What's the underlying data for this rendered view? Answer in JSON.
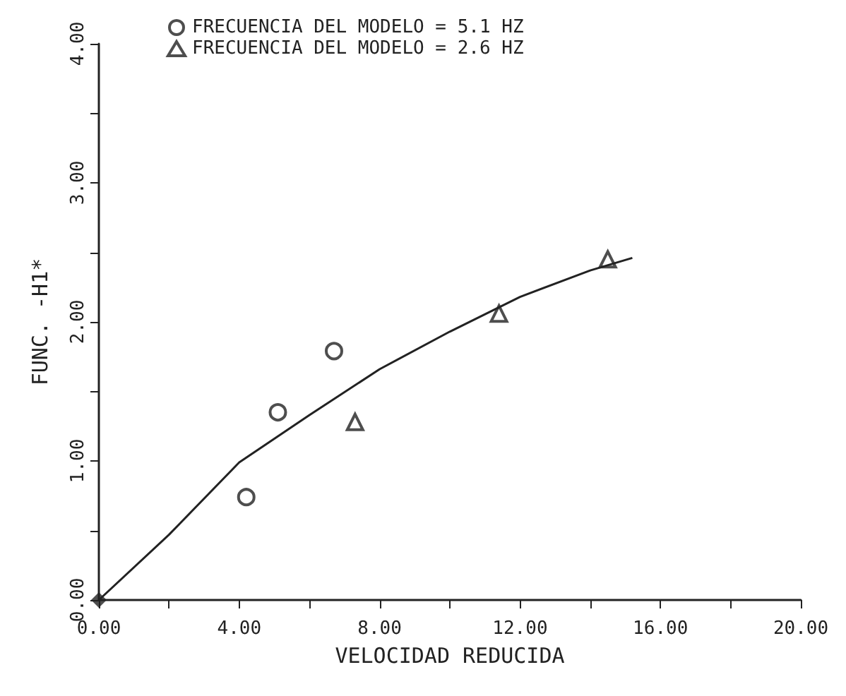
{
  "chart_data": {
    "type": "scatter",
    "xlabel": "VELOCIDAD REDUCIDA",
    "ylabel": "FUNC. -H1*",
    "xlim": [
      0,
      20
    ],
    "ylim": [
      0,
      4
    ],
    "xticks": [
      {
        "value": 0,
        "label": "0.00"
      },
      {
        "value": 2,
        "label": null
      },
      {
        "value": 4,
        "label": "4.00"
      },
      {
        "value": 6,
        "label": null
      },
      {
        "value": 8,
        "label": "8.00"
      },
      {
        "value": 10,
        "label": null
      },
      {
        "value": 12,
        "label": "12.00"
      },
      {
        "value": 14,
        "label": null
      },
      {
        "value": 16,
        "label": "16.00"
      },
      {
        "value": 18,
        "label": null
      },
      {
        "value": 20,
        "label": "20.00"
      }
    ],
    "yticks": [
      {
        "value": 0,
        "label": "0.00"
      },
      {
        "value": 0.5,
        "label": null
      },
      {
        "value": 1,
        "label": "1.00"
      },
      {
        "value": 1.5,
        "label": null
      },
      {
        "value": 2,
        "label": "2.00"
      },
      {
        "value": 2.5,
        "label": null
      },
      {
        "value": 3,
        "label": "3.00"
      },
      {
        "value": 3.5,
        "label": null
      },
      {
        "value": 4,
        "label": "4.00"
      }
    ],
    "grid": false,
    "legend": "top left",
    "series": [
      {
        "name": "FRECUENCIA DEL MODELO = 5.1 HZ",
        "type": "scatter",
        "marker": "circle",
        "color": "#222222",
        "x": [
          4.2,
          5.1,
          6.7
        ],
        "values": [
          0.74,
          1.35,
          1.79
        ]
      },
      {
        "name": "FRECUENCIA DEL MODELO = 2.6 HZ",
        "type": "scatter",
        "marker": "triangle",
        "color": "#222222",
        "x": [
          7.3,
          11.4,
          14.5
        ],
        "values": [
          1.28,
          2.06,
          2.45
        ]
      },
      {
        "type": "scatter",
        "marker": "diamond",
        "color": "#222222",
        "x": [
          0
        ],
        "values": [
          0
        ]
      },
      {
        "type": "line",
        "marker": "none",
        "color": "#222222",
        "x": [
          0,
          2,
          4,
          6,
          8,
          10,
          12,
          14,
          15.2
        ],
        "values": [
          0,
          0.47,
          0.99,
          1.33,
          1.66,
          1.93,
          2.18,
          2.37,
          2.46
        ]
      }
    ]
  }
}
